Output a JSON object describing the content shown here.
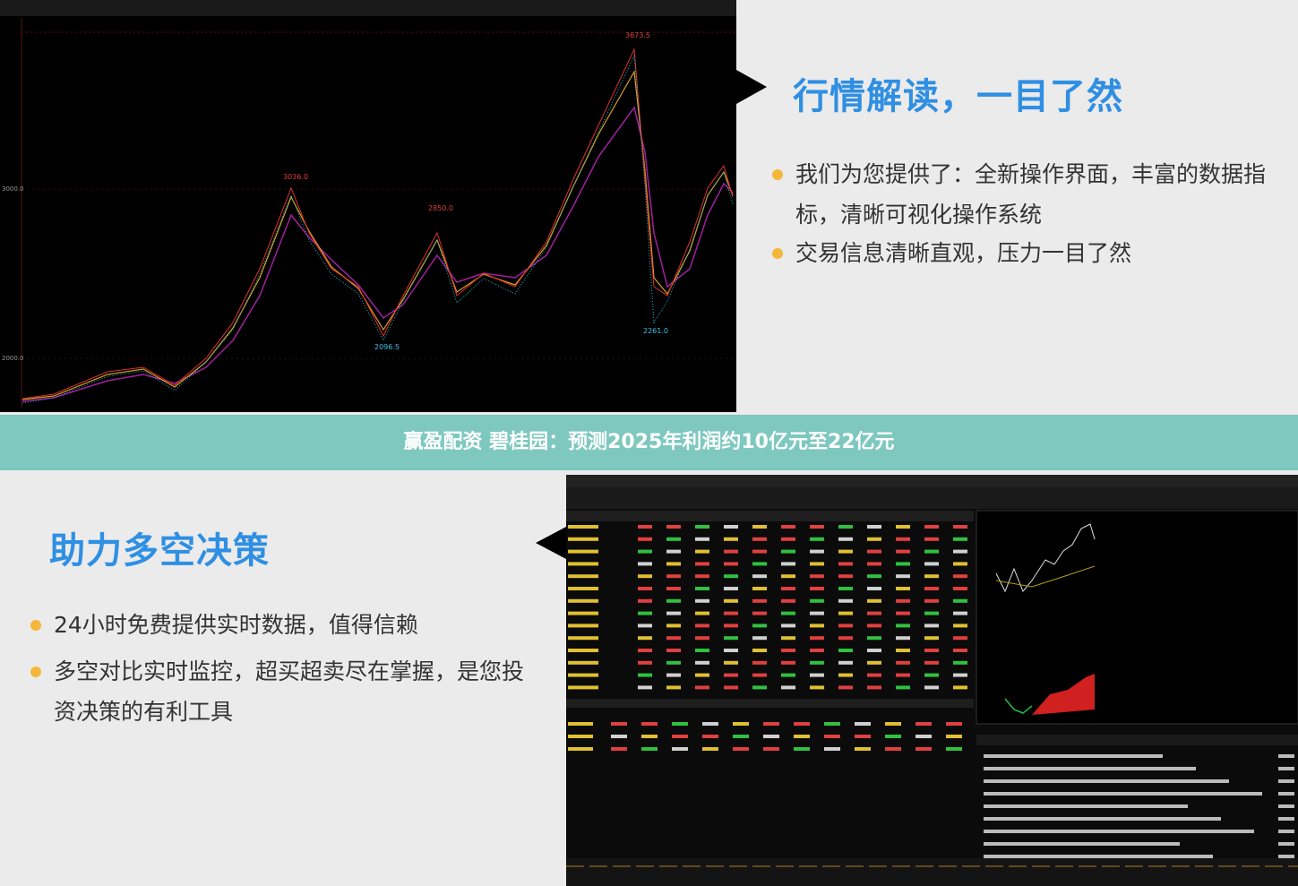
{
  "top": {
    "chart": {
      "price_labels": [
        "3673.5",
        "3036.0",
        "2850.0",
        "2096.5",
        "2261.0"
      ],
      "axis_labels": [
        "3000.0",
        "2000.0"
      ]
    },
    "title": "行情解读，一目了然",
    "bullets": [
      "我们为您提供了：全新操作界面，丰富的数据指标，清晰可视化操作系统",
      "交易信息清晰直观，压力一目了然"
    ]
  },
  "banner": "赢盈配资 碧桂园：预测2025年利润约10亿元至22亿元",
  "bottom": {
    "title": "助力多空决策",
    "bullets": [
      "24小时免费提供实时数据，值得信赖",
      "多空对比实时监控，超买超卖尽在掌握，是您投资决策的有利工具"
    ]
  }
}
